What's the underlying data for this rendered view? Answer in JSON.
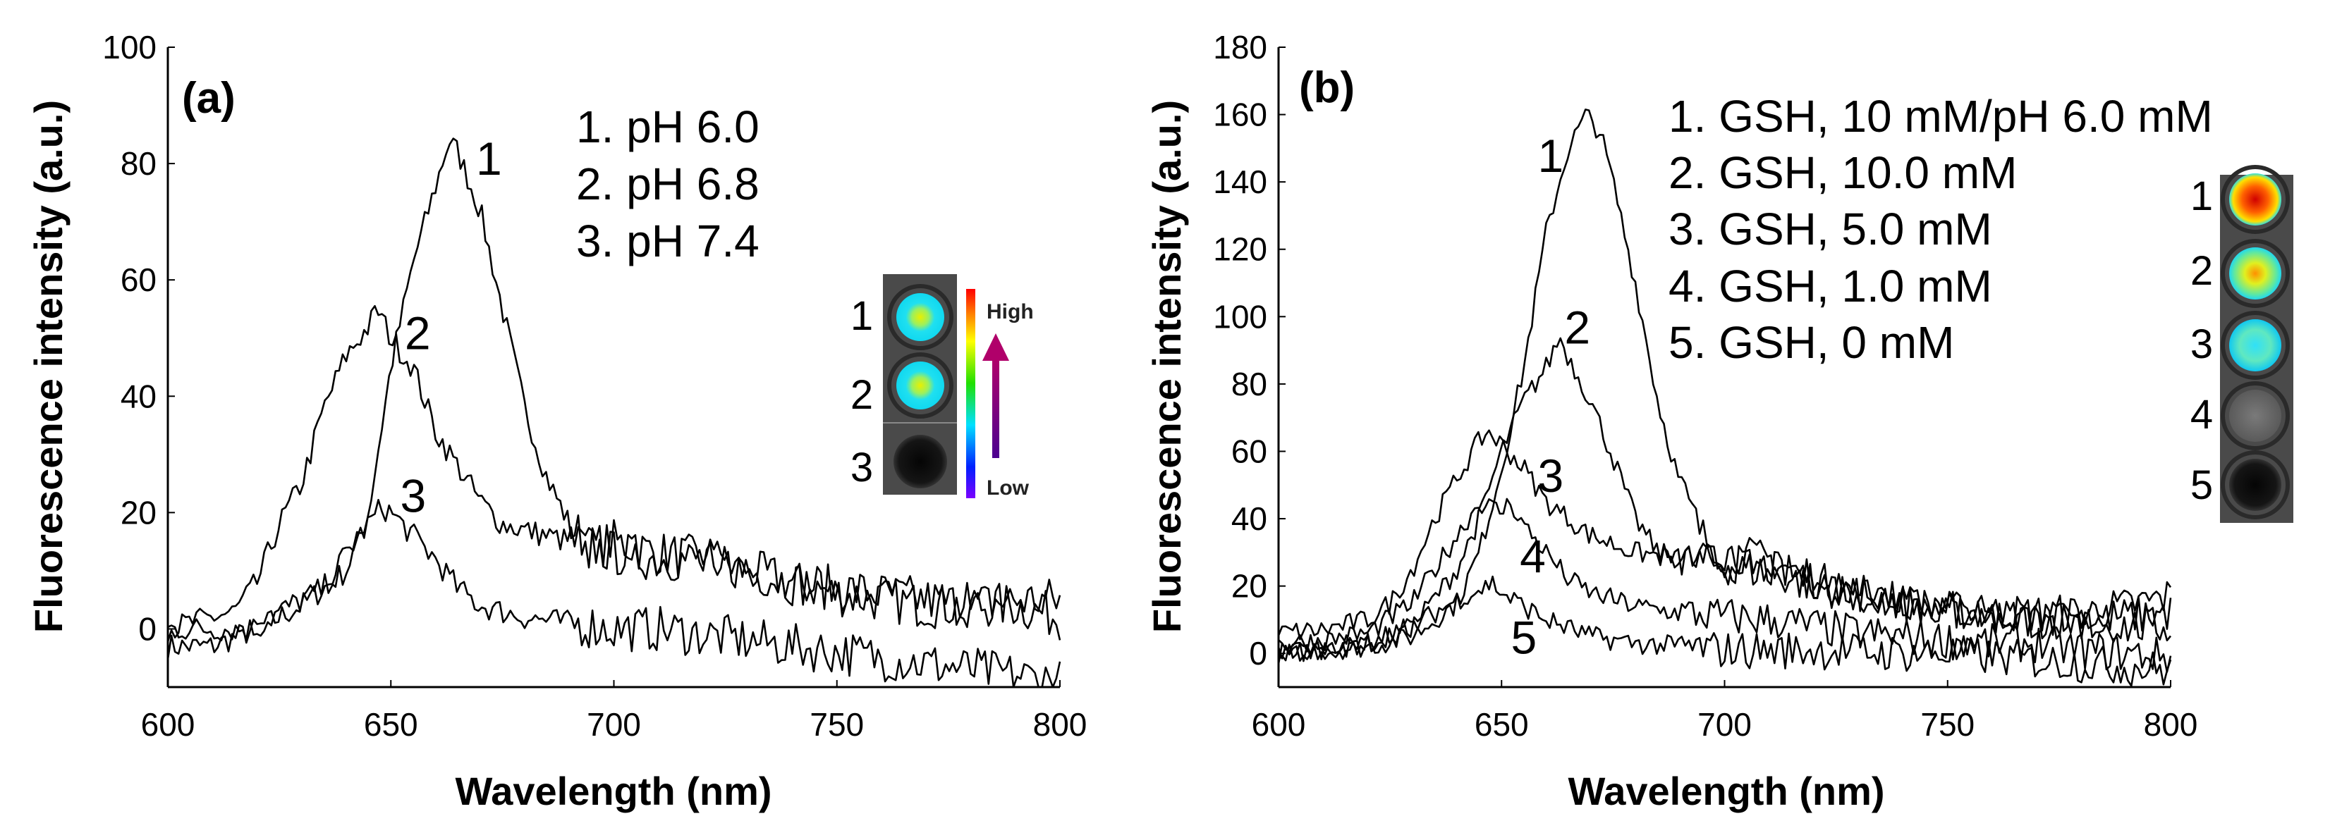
{
  "chart_data": [
    {
      "type": "line",
      "panel_label": "(a)",
      "xlabel": "Wavelength (nm)",
      "ylabel": "Fluorescence intensity (a.u.)",
      "xlim": [
        600,
        800
      ],
      "ylim": [
        -10,
        100
      ],
      "xticks": [
        600,
        650,
        700,
        750,
        800
      ],
      "yticks": [
        0,
        20,
        40,
        60,
        80,
        100
      ],
      "grid": false,
      "legend": [
        "1. pH 6.0",
        "2. pH 6.8",
        "3. pH 7.4"
      ],
      "series": [
        {
          "name": "1",
          "label_at": [
            672,
            81
          ],
          "x": [
            600,
            610,
            620,
            630,
            640,
            645,
            650,
            655,
            660,
            663,
            665,
            670,
            675,
            680,
            685,
            690,
            695,
            700,
            710,
            720,
            730,
            740,
            750,
            760,
            770,
            780,
            790,
            800
          ],
          "y": [
            -3,
            -3,
            0,
            4,
            10,
            20,
            45,
            63,
            76,
            84,
            82,
            72,
            55,
            38,
            26,
            18,
            14,
            15,
            13,
            12,
            10,
            8,
            6,
            5,
            4,
            4,
            4,
            2
          ]
        },
        {
          "name": "2",
          "label_at": [
            656,
            51
          ],
          "x": [
            600,
            610,
            615,
            620,
            625,
            630,
            635,
            640,
            645,
            647,
            650,
            655,
            660,
            665,
            670,
            675,
            680,
            690,
            700,
            710,
            720,
            730,
            740,
            750,
            760,
            770,
            780,
            790,
            800
          ],
          "y": [
            0,
            2,
            3,
            8,
            18,
            25,
            38,
            47,
            52,
            55,
            50,
            45,
            34,
            28,
            22,
            18,
            17,
            15,
            13,
            12,
            12,
            10,
            8,
            7,
            6,
            5,
            4,
            5,
            5
          ]
        },
        {
          "name": "3",
          "label_at": [
            655,
            23
          ],
          "x": [
            600,
            610,
            620,
            625,
            630,
            635,
            640,
            645,
            648,
            650,
            655,
            660,
            665,
            670,
            680,
            690,
            700,
            710,
            720,
            730,
            740,
            750,
            760,
            770,
            780,
            790,
            800
          ],
          "y": [
            0,
            0,
            0,
            3,
            5,
            7,
            13,
            18,
            21,
            20,
            16,
            12,
            7,
            4,
            2,
            1,
            0,
            0,
            -1,
            -2,
            -3,
            -4,
            -5,
            -6,
            -7,
            -8,
            -9
          ]
        }
      ],
      "inset": {
        "wells": [
          "1",
          "2",
          "3"
        ],
        "scale_high": "High",
        "scale_low": "Low"
      }
    },
    {
      "type": "line",
      "panel_label": "(b)",
      "xlabel": "Wavelength (nm)",
      "ylabel": "Fluorescence intensity (a.u.)",
      "xlim": [
        600,
        800
      ],
      "ylim": [
        -10,
        180
      ],
      "xticks": [
        600,
        650,
        700,
        750,
        800
      ],
      "yticks": [
        0,
        20,
        40,
        60,
        80,
        100,
        120,
        140,
        160,
        180
      ],
      "grid": false,
      "legend": [
        "1. GSH, 10 mM/pH 6.0 mM",
        "2. GSH, 10.0 mM",
        "3. GSH, 5.0 mM",
        "4. GSH, 1.0 mM",
        "5. GSH, 0 mM"
      ],
      "series": [
        {
          "name": "1",
          "label_at": [
            661,
            148
          ],
          "x": [
            600,
            620,
            630,
            640,
            645,
            650,
            655,
            660,
            665,
            669,
            672,
            675,
            680,
            685,
            690,
            695,
            700,
            710,
            720,
            730,
            740,
            750,
            760,
            770,
            780,
            790,
            800
          ],
          "y": [
            0,
            2,
            5,
            15,
            30,
            55,
            85,
            125,
            150,
            160,
            155,
            140,
            110,
            75,
            50,
            35,
            30,
            28,
            22,
            18,
            15,
            13,
            12,
            12,
            12,
            14,
            17
          ]
        },
        {
          "name": "2",
          "label_at": [
            667,
            97
          ],
          "x": [
            600,
            620,
            630,
            640,
            645,
            650,
            655,
            660,
            663,
            665,
            670,
            675,
            680,
            685,
            690,
            700,
            710,
            720,
            730,
            740,
            750,
            760,
            770,
            780,
            790,
            800
          ],
          "y": [
            0,
            3,
            8,
            25,
            40,
            60,
            75,
            85,
            94,
            88,
            75,
            58,
            40,
            30,
            28,
            26,
            24,
            20,
            18,
            15,
            13,
            11,
            10,
            10,
            11,
            12
          ]
        },
        {
          "name": "3",
          "label_at": [
            661,
            53
          ],
          "x": [
            600,
            610,
            620,
            625,
            630,
            635,
            640,
            645,
            647,
            650,
            655,
            660,
            665,
            670,
            680,
            690,
            700,
            710,
            720,
            730,
            740,
            750,
            760,
            770,
            780,
            790,
            800
          ],
          "y": [
            6,
            7,
            10,
            15,
            25,
            40,
            52,
            63,
            66,
            62,
            55,
            45,
            40,
            35,
            30,
            28,
            27,
            25,
            22,
            18,
            16,
            13,
            11,
            10,
            9,
            8,
            8
          ]
        },
        {
          "name": "4",
          "label_at": [
            657,
            29
          ],
          "x": [
            600,
            610,
            620,
            630,
            640,
            645,
            650,
            652,
            655,
            660,
            665,
            670,
            680,
            690,
            700,
            710,
            720,
            730,
            740,
            750,
            760,
            770,
            780,
            790,
            800
          ],
          "y": [
            3,
            4,
            6,
            15,
            35,
            45,
            42,
            45,
            38,
            30,
            22,
            18,
            14,
            12,
            11,
            10,
            8,
            6,
            5,
            4,
            3,
            3,
            1,
            0,
            -1
          ]
        },
        {
          "name": "5",
          "label_at": [
            655,
            5
          ],
          "x": [
            600,
            610,
            620,
            630,
            640,
            645,
            648,
            650,
            655,
            660,
            670,
            680,
            690,
            700,
            720,
            740,
            750,
            760,
            780,
            790,
            800
          ],
          "y": [
            1,
            0,
            3,
            8,
            16,
            19,
            21,
            18,
            14,
            10,
            5,
            3,
            2,
            1,
            1,
            0,
            0,
            -1,
            -3,
            -4,
            -5
          ]
        }
      ],
      "inset": {
        "wells": [
          "1",
          "2",
          "3",
          "4",
          "5"
        ]
      }
    }
  ],
  "colors": {
    "line": "#000000",
    "inset_bg": "#4a4a4a",
    "arrow": "#8b0a6e"
  }
}
